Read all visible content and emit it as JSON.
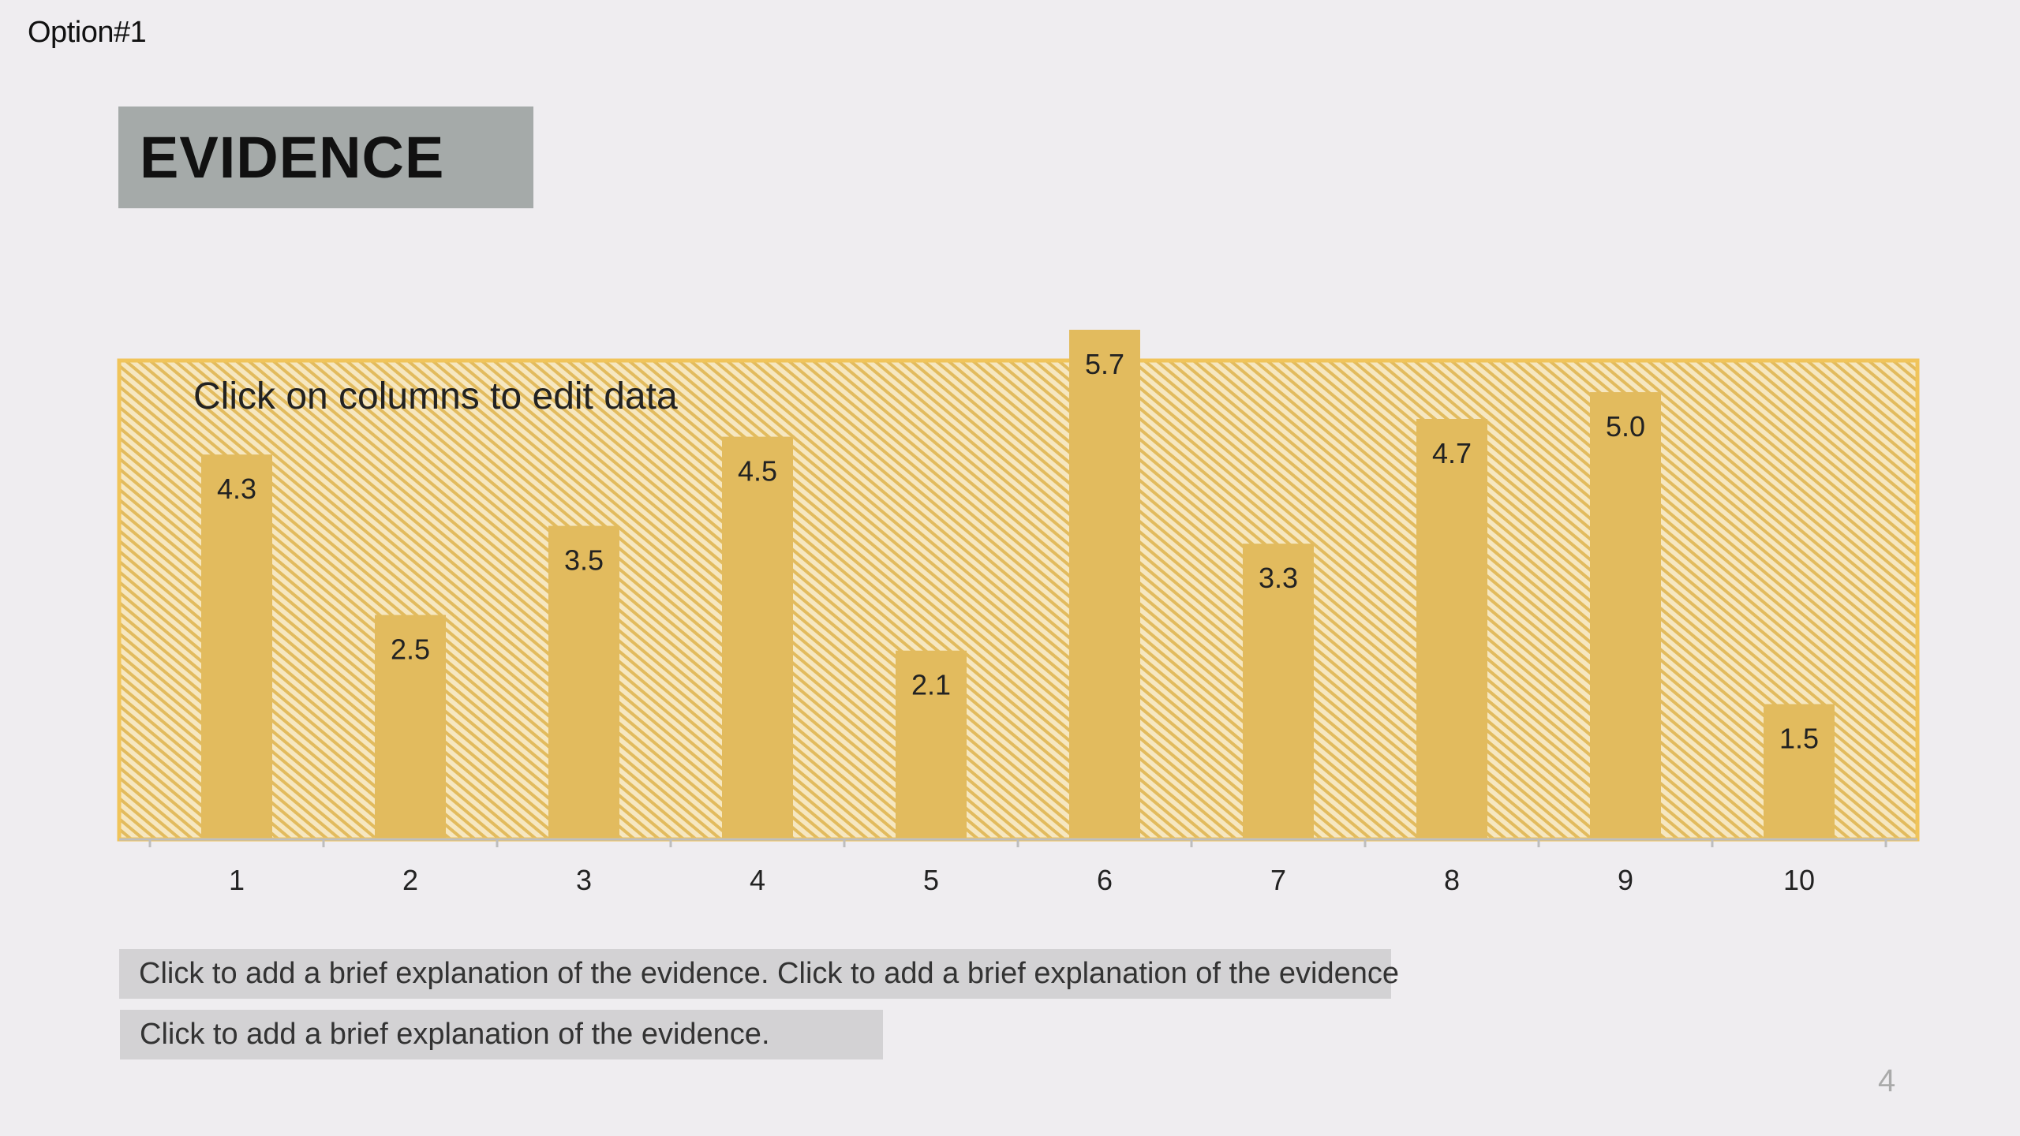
{
  "option_label": "Option#1",
  "title": "EVIDENCE",
  "notes": [
    "Click to add a brief explanation of the evidence. Click to add a brief explanation of the evidence",
    "Click to add a brief explanation of the evidence."
  ],
  "page_number": "4",
  "colors": {
    "bar": "#e2bb5e",
    "panel_border": "#f0c45a",
    "hatch_light": "#f6e7c0",
    "hatch_dark": "#e2bb5e",
    "axis": "#bdbdbd",
    "text": "#222222"
  },
  "chart_data": {
    "type": "bar",
    "annotation": "Click on columns to edit data",
    "categories": [
      "1",
      "2",
      "3",
      "4",
      "5",
      "6",
      "7",
      "8",
      "9",
      "10"
    ],
    "values": [
      4.3,
      2.5,
      3.5,
      4.5,
      2.1,
      5.7,
      3.3,
      4.7,
      5.0,
      1.5
    ],
    "data_labels": [
      "4.3",
      "2.5",
      "3.5",
      "4.5",
      "2.1",
      "5.7",
      "3.3",
      "4.7",
      "5.0",
      "1.5"
    ],
    "ylim": [
      0,
      5.7
    ],
    "title": "",
    "xlabel": "",
    "ylabel": "",
    "grid": false,
    "legend": "none"
  }
}
